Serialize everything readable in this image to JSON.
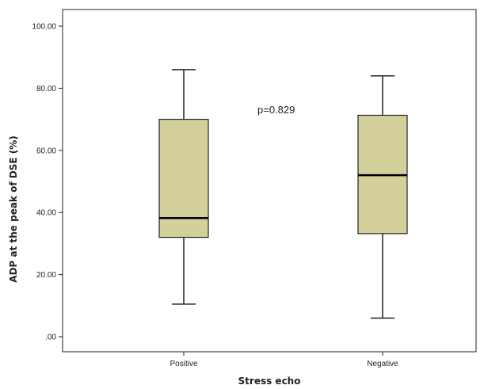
{
  "chart_data": {
    "type": "box",
    "xlabel": "Stress echo",
    "ylabel": "ADP at the peak of DSE (%)",
    "ylim": [
      0,
      100
    ],
    "yticks": [
      ".00",
      "20.00",
      "40.00",
      "60.00",
      "80.00",
      "100.00"
    ],
    "y_tick_values": [
      0,
      20,
      40,
      60,
      80,
      100
    ],
    "categories": [
      "Positive",
      "Negative"
    ],
    "boxes": [
      {
        "category": "Positive",
        "min": 10.5,
        "q1": 32,
        "median": 38.2,
        "q3": 70,
        "max": 86
      },
      {
        "category": "Negative",
        "min": 6,
        "q1": 33.2,
        "median": 52,
        "q3": 71.3,
        "max": 84
      }
    ],
    "annotations": [
      {
        "text": "p=0.829"
      }
    ],
    "grid": false,
    "box_color": "#d4d09c",
    "stroke_color": "#222222",
    "plot_background": "#ffffff"
  }
}
